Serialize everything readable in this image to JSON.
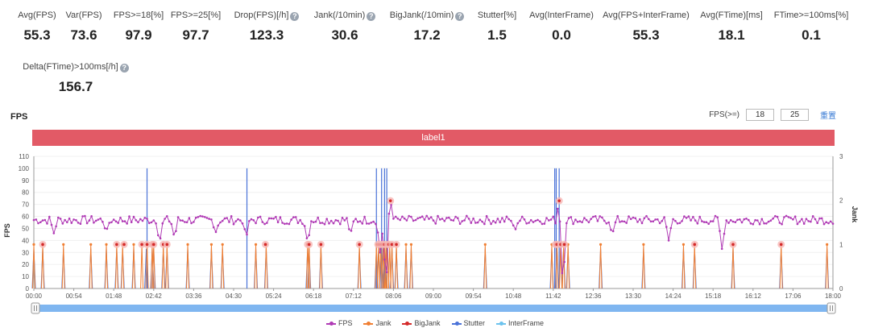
{
  "metrics": [
    {
      "label": "Avg(FPS)",
      "value": "55.3",
      "help": false
    },
    {
      "label": "Var(FPS)",
      "value": "73.6",
      "help": false
    },
    {
      "label": "FPS>=18[%]",
      "value": "97.9",
      "help": false
    },
    {
      "label": "FPS>=25[%]",
      "value": "97.7",
      "help": false
    },
    {
      "label": "Drop(FPS)[/h]",
      "value": "123.3",
      "help": true
    },
    {
      "label": "Jank(/10min)",
      "value": "30.6",
      "help": true
    },
    {
      "label": "BigJank(/10min)",
      "value": "17.2",
      "help": true
    },
    {
      "label": "Stutter[%]",
      "value": "1.5",
      "help": false
    },
    {
      "label": "Avg(InterFrame)",
      "value": "0.0",
      "help": false
    },
    {
      "label": "Avg(FPS+InterFrame)",
      "value": "55.3",
      "help": false
    },
    {
      "label": "Avg(FTime)[ms]",
      "value": "18.1",
      "help": false
    },
    {
      "label": "FTime>=100ms[%]",
      "value": "0.1",
      "help": false
    },
    {
      "label": "Delta(FTime)>100ms[/h]",
      "value": "156.7",
      "help": true
    }
  ],
  "help_icon_glyph": "?",
  "chart_header": {
    "title": "FPS",
    "fps_threshold_label": "FPS(>=)",
    "threshold_low": "18",
    "threshold_high": "25",
    "reset_label": "重置"
  },
  "label_band": {
    "text": "label1",
    "color": "#e25a66"
  },
  "colors": {
    "fps": "#b03ab5",
    "jank": "#f07f33",
    "bigjank": "#d42a2a",
    "stutter": "#4a72d8",
    "interframe": "#6cc3ee",
    "slider": "#7fb6f0"
  },
  "chart_data": {
    "type": "line",
    "xlabel": "",
    "ylabel_left": "FPS",
    "ylabel_right": "Jank",
    "ylim_left": [
      0,
      110
    ],
    "yticks_left": [
      0,
      10,
      20,
      30,
      40,
      50,
      60,
      70,
      80,
      90,
      100,
      110
    ],
    "ylim_right": [
      0,
      3
    ],
    "yticks_right": [
      0,
      1,
      2,
      3
    ],
    "xlim_minutes": [
      0,
      1080
    ],
    "xticks": [
      "00:00",
      "00:54",
      "01:48",
      "02:42",
      "03:36",
      "04:30",
      "05:24",
      "06:18",
      "07:12",
      "08:06",
      "09:00",
      "09:54",
      "10:48",
      "11:42",
      "12:36",
      "13:30",
      "14:24",
      "15:18",
      "16:12",
      "17:06",
      "18:00"
    ],
    "fps_baseline": 57,
    "fps_dips": [
      {
        "t": 27,
        "fps": 46
      },
      {
        "t": 98,
        "fps": 47
      },
      {
        "t": 170,
        "fps": 38
      },
      {
        "t": 190,
        "fps": 42
      },
      {
        "t": 246,
        "fps": 47
      },
      {
        "t": 287,
        "fps": 42
      },
      {
        "t": 370,
        "fps": 38
      },
      {
        "t": 428,
        "fps": 45
      },
      {
        "t": 468,
        "fps": 30
      },
      {
        "t": 476,
        "fps": 2
      },
      {
        "t": 482,
        "fps": 73
      },
      {
        "t": 650,
        "fps": 48
      },
      {
        "t": 710,
        "fps": 73
      },
      {
        "t": 715,
        "fps": 1
      },
      {
        "t": 782,
        "fps": 45
      },
      {
        "t": 858,
        "fps": 40
      },
      {
        "t": 930,
        "fps": 33
      }
    ],
    "series": [
      {
        "name": "FPS",
        "axis": "left"
      },
      {
        "name": "Jank",
        "axis": "right",
        "events_minutes": [
          0,
          12,
          40,
          77,
          98,
          112,
          120,
          135,
          146,
          153,
          160,
          162,
          175,
          180,
          208,
          240,
          255,
          300,
          314,
          370,
          372,
          388,
          440,
          463,
          466,
          469,
          472,
          474,
          476,
          478,
          481,
          484,
          490,
          503,
          510,
          610,
          700,
          707,
          712,
          716,
          722,
          766,
          824,
          878,
          893,
          945,
          1010,
          1072
        ],
        "value": 1
      },
      {
        "name": "BigJank",
        "axis": "right",
        "events_minutes": [
          12,
          112,
          122,
          146,
          153,
          160,
          162,
          175,
          180,
          313,
          370,
          372,
          388,
          440,
          465,
          468,
          471,
          474,
          478,
          480,
          484,
          490,
          705,
          707,
          712,
          717,
          893,
          945,
          1010
        ],
        "value": 1
      },
      {
        "name": "Stutter",
        "axis": "left",
        "events_minutes": [
          0,
          12,
          40,
          77,
          98,
          112,
          120,
          135,
          152,
          160,
          162,
          175,
          180,
          208,
          240,
          255,
          300,
          314,
          370,
          372,
          388,
          440,
          463,
          466,
          470,
          474,
          478,
          484,
          490,
          503,
          510,
          610,
          700,
          707,
          712,
          716,
          722,
          766,
          824,
          878,
          893,
          945,
          1010,
          1072
        ],
        "tall_events": [
          {
            "t": 153,
            "v": 100
          },
          {
            "t": 288,
            "v": 100
          },
          {
            "t": 463,
            "v": 100
          },
          {
            "t": 470,
            "v": 100
          },
          {
            "t": 474,
            "v": 100
          },
          {
            "t": 477,
            "v": 100
          },
          {
            "t": 704,
            "v": 100
          },
          {
            "t": 706,
            "v": 100
          },
          {
            "t": 710,
            "v": 100
          }
        ]
      },
      {
        "name": "InterFrame",
        "axis": "left",
        "events_minutes": [],
        "value": 0
      }
    ],
    "legend": [
      "FPS",
      "Jank",
      "BigJank",
      "Stutter",
      "InterFrame"
    ]
  }
}
